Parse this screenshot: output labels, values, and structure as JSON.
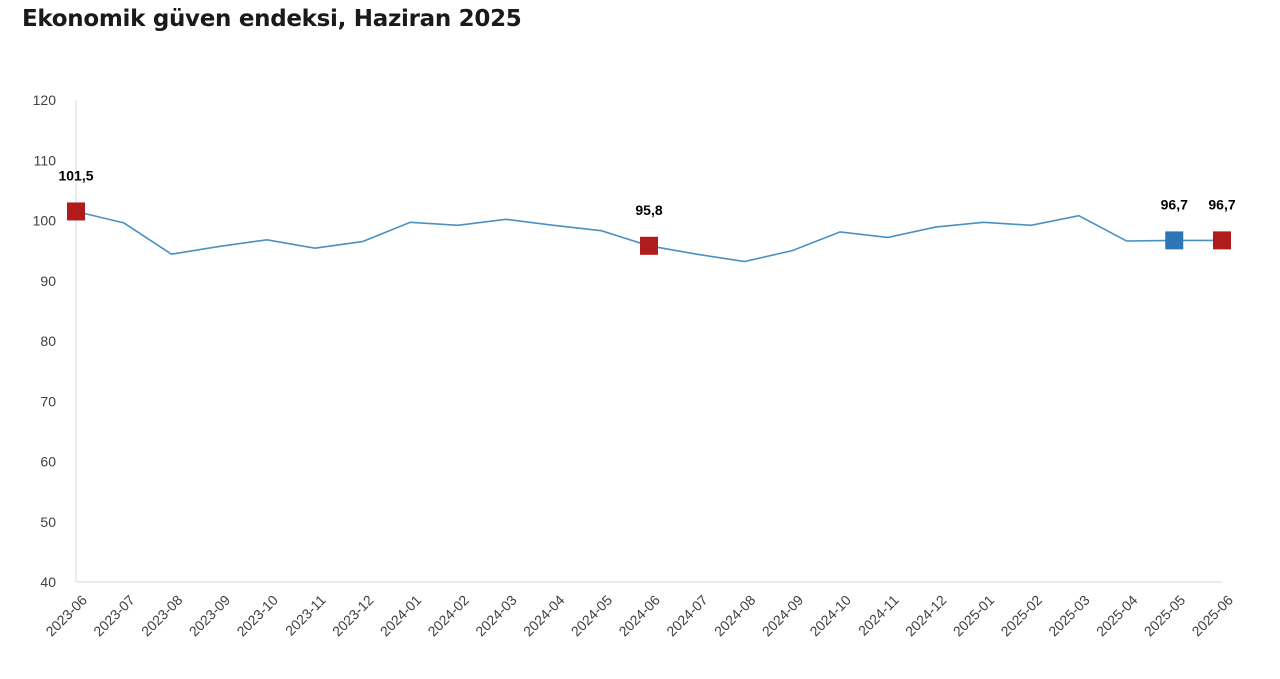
{
  "chart_data": {
    "type": "line",
    "title": "Ekonomik güven endeksi, Haziran 2025",
    "xlabel": "",
    "ylabel": "",
    "ylim": [
      40,
      120
    ],
    "yticks": [
      40,
      50,
      60,
      70,
      80,
      90,
      100,
      110,
      120
    ],
    "categories": [
      "2023-06",
      "2023-07",
      "2023-08",
      "2023-09",
      "2023-10",
      "2023-11",
      "2023-12",
      "2024-01",
      "2024-02",
      "2024-03",
      "2024-04",
      "2024-05",
      "2024-06",
      "2024-07",
      "2024-08",
      "2024-09",
      "2024-10",
      "2024-11",
      "2024-12",
      "2025-01",
      "2025-02",
      "2025-03",
      "2025-04",
      "2025-05",
      "2025-06"
    ],
    "series": [
      {
        "name": "Ekonomik güven endeksi",
        "values": [
          101.5,
          99.6,
          94.4,
          95.7,
          96.8,
          95.4,
          96.5,
          99.7,
          99.2,
          100.2,
          99.2,
          98.3,
          95.8,
          94.4,
          93.2,
          95.0,
          98.1,
          97.2,
          98.9,
          99.7,
          99.2,
          100.8,
          96.6,
          96.7,
          96.7
        ]
      }
    ],
    "highlights": [
      {
        "index": 0,
        "label": "101,5",
        "color": "#b01c1c"
      },
      {
        "index": 12,
        "label": "95,8",
        "color": "#b01c1c"
      },
      {
        "index": 23,
        "label": "96,7",
        "color": "#2e75b6"
      },
      {
        "index": 24,
        "label": "96,7",
        "color": "#b01c1c"
      }
    ],
    "line_color": "#4a90c2",
    "grid": false,
    "legend": "none"
  }
}
